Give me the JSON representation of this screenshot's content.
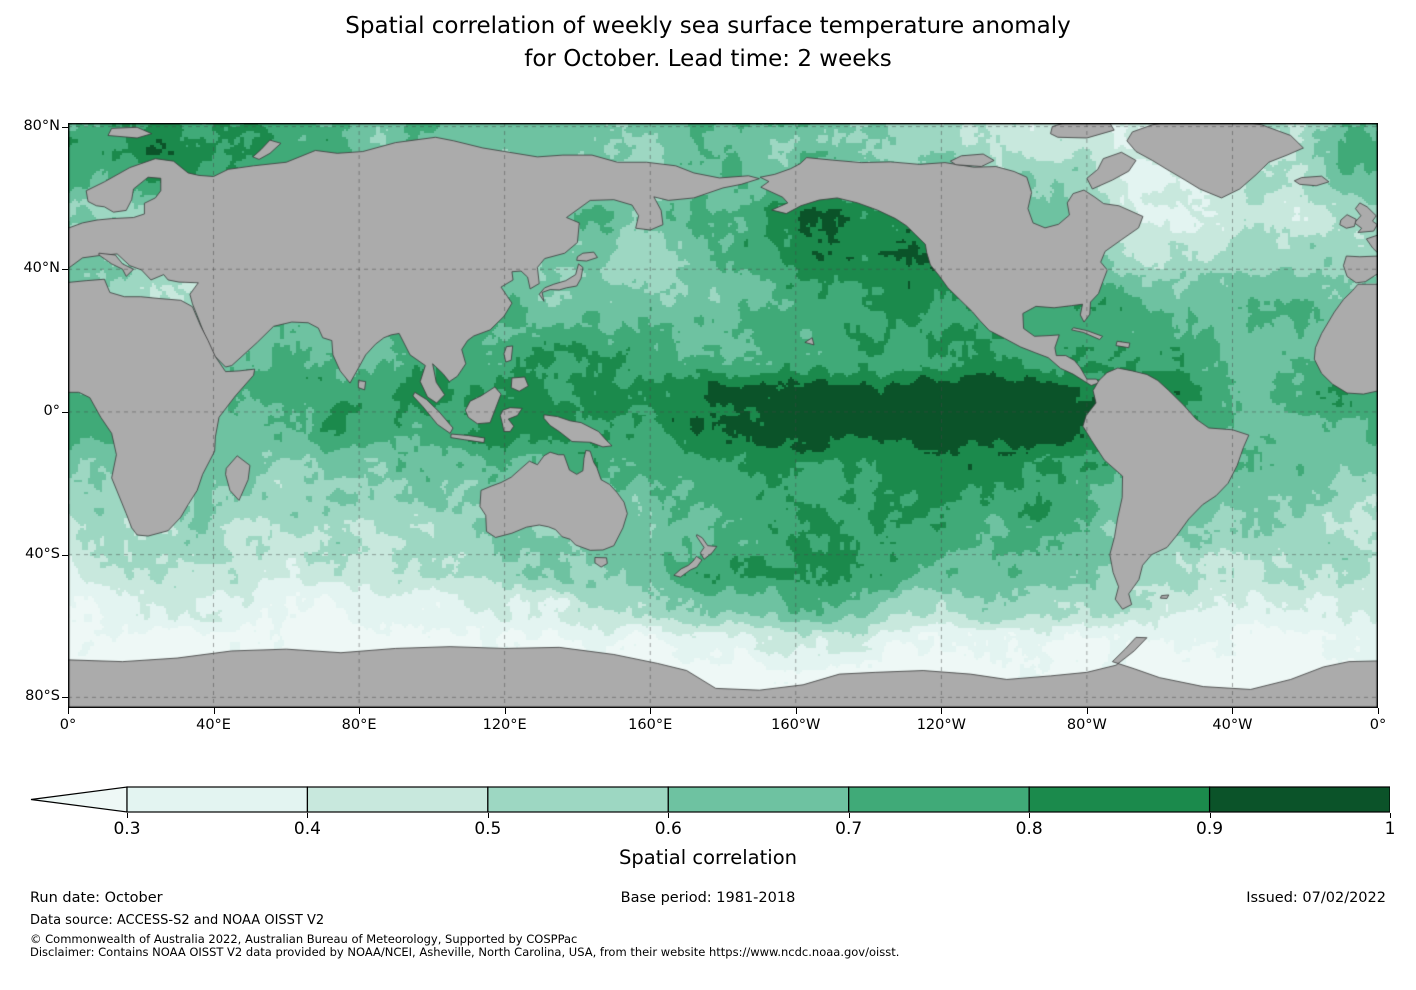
{
  "title": {
    "line1": "Spatial correlation of weekly sea surface temperature anomaly",
    "line2": "for October. Lead time: 2 weeks"
  },
  "axes": {
    "lat_ticks": [
      {
        "label": "80°N",
        "lat": 80
      },
      {
        "label": "40°N",
        "lat": 40
      },
      {
        "label": "0°",
        "lat": 0
      },
      {
        "label": "40°S",
        "lat": -40
      },
      {
        "label": "80°S",
        "lat": -80
      }
    ],
    "lon_ticks": [
      {
        "label": "0°",
        "lon": 0
      },
      {
        "label": "40°E",
        "lon": 40
      },
      {
        "label": "80°E",
        "lon": 80
      },
      {
        "label": "120°E",
        "lon": 120
      },
      {
        "label": "160°E",
        "lon": 160
      },
      {
        "label": "160°W",
        "lon": 200
      },
      {
        "label": "120°W",
        "lon": 240
      },
      {
        "label": "80°W",
        "lon": 280
      },
      {
        "label": "40°W",
        "lon": 320
      },
      {
        "label": "0°",
        "lon": 360
      }
    ]
  },
  "colorbar": {
    "label": "Spatial correlation",
    "tick_labels": [
      "0.3",
      "0.4",
      "0.5",
      "0.6",
      "0.7",
      "0.8",
      "0.9",
      "1"
    ],
    "segment_colors": [
      "#e3f4f1",
      "#c8e8dd",
      "#9dd7c2",
      "#6ec2a1",
      "#40aa78",
      "#1b8a4c",
      "#0b5329"
    ],
    "under_color": "#eef8f6",
    "land_color": "#ababab"
  },
  "footer": {
    "run_date": "Run date: October",
    "base_period": "Base period: 1981-2018",
    "issued": "Issued: 07/02/2022",
    "data_source": "Data source: ACCESS-S2 and NOAA OISST V2",
    "copyright": "© Commonwealth of Australia 2022, Australian Bureau of Meteorology, Supported by COSPPac",
    "disclaimer": "Disclaimer: Contains NOAA OISST V2 data provided by NOAA/NCEI, Asheville, North Carolina, USA, from their website https://www.ncdc.noaa.gov/oisst."
  },
  "chart_data": {
    "type": "heatmap",
    "title": "Spatial correlation of weekly sea surface temperature anomaly for October. Lead time: 2 weeks",
    "colorbar_label": "Spatial correlation",
    "levels": [
      0.3,
      0.4,
      0.5,
      0.6,
      0.7,
      0.8,
      0.9,
      1.0
    ],
    "underflow": "< 0.3",
    "projection": "equirectangular-pacific-centered",
    "lon_range": [
      0,
      360
    ],
    "lat_range": [
      -83,
      81
    ],
    "grid": {
      "description": "Approximate spatial correlation field read from the map shading, sampled on a coarse lat/lon grid (lon measured eastward from Greenwich, map is Pacific-centered)",
      "lats": [
        85,
        75,
        65,
        55,
        45,
        35,
        25,
        15,
        5,
        -5,
        -15,
        -25,
        -35,
        -45,
        -55,
        -65,
        -75,
        -85
      ],
      "lons": [
        0,
        30,
        60,
        90,
        120,
        150,
        180,
        210,
        240,
        270,
        300,
        330,
        360
      ],
      "values": [
        [
          0.75,
          0.8,
          0.75,
          0.65,
          0.6,
          0.65,
          0.7,
          0.65,
          0.55,
          0.45,
          0.45,
          0.55,
          0.7
        ],
        [
          0.8,
          0.85,
          0.75,
          0.65,
          0.6,
          0.6,
          0.65,
          0.6,
          0.55,
          0.45,
          0.4,
          0.55,
          0.75
        ],
        [
          0.7,
          0.8,
          0.7,
          0.6,
          0.55,
          0.55,
          0.65,
          0.7,
          0.65,
          0.55,
          0.35,
          0.5,
          0.7
        ],
        [
          0.6,
          0.65,
          0.6,
          0.5,
          0.55,
          0.65,
          0.75,
          0.85,
          0.8,
          0.65,
          0.3,
          0.4,
          0.55
        ],
        [
          0.55,
          0.6,
          0.5,
          0.45,
          0.5,
          0.55,
          0.7,
          0.85,
          0.85,
          0.7,
          0.45,
          0.5,
          0.55
        ],
        [
          0.6,
          0.55,
          0.55,
          0.6,
          0.6,
          0.55,
          0.65,
          0.8,
          0.8,
          0.75,
          0.55,
          0.65,
          0.6
        ],
        [
          0.65,
          0.6,
          0.65,
          0.7,
          0.7,
          0.65,
          0.7,
          0.75,
          0.75,
          0.7,
          0.65,
          0.7,
          0.65
        ],
        [
          0.7,
          0.65,
          0.7,
          0.7,
          0.75,
          0.75,
          0.7,
          0.7,
          0.75,
          0.75,
          0.7,
          0.7,
          0.7
        ],
        [
          0.75,
          0.7,
          0.7,
          0.75,
          0.8,
          0.82,
          0.88,
          0.93,
          0.96,
          0.96,
          0.8,
          0.75,
          0.75
        ],
        [
          0.7,
          0.68,
          0.68,
          0.75,
          0.8,
          0.82,
          0.87,
          0.92,
          0.95,
          0.95,
          0.78,
          0.72,
          0.7
        ],
        [
          0.62,
          0.65,
          0.6,
          0.65,
          0.72,
          0.76,
          0.8,
          0.82,
          0.85,
          0.85,
          0.72,
          0.65,
          0.62
        ],
        [
          0.55,
          0.6,
          0.55,
          0.6,
          0.66,
          0.7,
          0.75,
          0.76,
          0.8,
          0.75,
          0.65,
          0.6,
          0.55
        ],
        [
          0.5,
          0.55,
          0.5,
          0.55,
          0.62,
          0.66,
          0.72,
          0.76,
          0.75,
          0.68,
          0.6,
          0.55,
          0.5
        ],
        [
          0.45,
          0.5,
          0.45,
          0.5,
          0.55,
          0.62,
          0.75,
          0.8,
          0.72,
          0.62,
          0.55,
          0.5,
          0.45
        ],
        [
          0.35,
          0.4,
          0.35,
          0.38,
          0.45,
          0.5,
          0.6,
          0.65,
          0.58,
          0.48,
          0.42,
          0.38,
          0.35
        ],
        [
          0.28,
          0.3,
          0.27,
          0.28,
          0.3,
          0.32,
          0.36,
          0.4,
          0.36,
          0.3,
          0.28,
          0.27,
          0.28
        ],
        [
          0.24,
          0.24,
          0.24,
          0.24,
          0.25,
          0.25,
          0.27,
          0.28,
          0.26,
          0.24,
          0.24,
          0.24,
          0.24
        ],
        [
          0.22,
          0.22,
          0.22,
          0.22,
          0.22,
          0.22,
          0.22,
          0.22,
          0.22,
          0.22,
          0.22,
          0.22,
          0.22
        ]
      ]
    }
  }
}
